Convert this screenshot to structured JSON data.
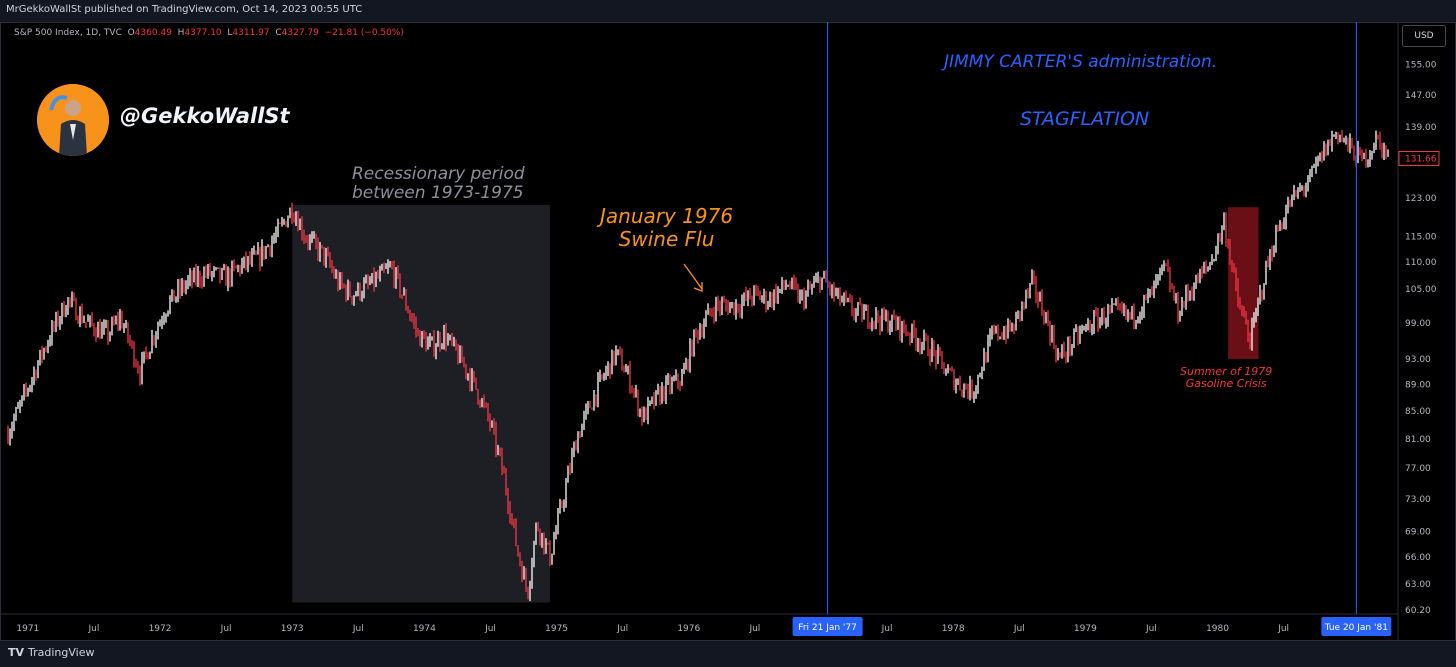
{
  "header": {
    "published": "MrGekkoWallSt published on TradingView.com, Oct 14, 2023 00:55 UTC",
    "symbol": "S&P 500 Index, 1D, TVC",
    "o_label": "O",
    "o_value": "4360.49",
    "h_label": "H",
    "h_value": "4377.10",
    "l_label": "L",
    "l_value": "4311.97",
    "c_label": "C",
    "c_value": "4327.79",
    "change": "−21.81 (−0.50%)",
    "currency": "USD"
  },
  "branding": {
    "handle": "@GekkoWallSt",
    "footer_logo": "TradingView"
  },
  "annotations": {
    "recession_line1": "Recessionary period",
    "recession_line2": "between 1973-1975",
    "swine_line1": "January 1976",
    "swine_line2": "Swine Flu",
    "carter": "JIMMY CARTER'S administration.",
    "stagflation": "STAGFLATION",
    "gas_line1": "Summer of 1979",
    "gas_line2": "Gasoline Crisis"
  },
  "colors": {
    "up": "#ffffff",
    "down": "#f23645",
    "marker": "#2962ff",
    "shade": "#1e1f24",
    "gas_shade": "#6b0f16"
  },
  "chart_data": {
    "type": "line",
    "title": "S&P 500 Index, 1D, TVC",
    "xlabel": "",
    "ylabel": "",
    "ylim": [
      60,
      160
    ],
    "xlim": [
      1970.85,
      1981.35
    ],
    "yticks": [
      155,
      147,
      139,
      131.66,
      123,
      115,
      110,
      105,
      99,
      93,
      89,
      85,
      81,
      77,
      73,
      69,
      66,
      63,
      60.2
    ],
    "ytick_labels": [
      "155.00",
      "147.00",
      "139.00",
      "131.66",
      "123.00",
      "115.00",
      "110.00",
      "105.00",
      "99.00",
      "93.00",
      "89.00",
      "85.00",
      "81.00",
      "77.00",
      "73.00",
      "69.00",
      "66.00",
      "63.00",
      "60.20"
    ],
    "xticks": [
      {
        "label": "1971",
        "t": 1971.0
      },
      {
        "label": "Jul",
        "t": 1971.5
      },
      {
        "label": "1972",
        "t": 1972.0
      },
      {
        "label": "Jul",
        "t": 1972.5
      },
      {
        "label": "1973",
        "t": 1973.0
      },
      {
        "label": "Jul",
        "t": 1973.5
      },
      {
        "label": "1974",
        "t": 1974.0
      },
      {
        "label": "Jul",
        "t": 1974.5
      },
      {
        "label": "1975",
        "t": 1975.0
      },
      {
        "label": "Jul",
        "t": 1975.5
      },
      {
        "label": "1976",
        "t": 1976.0
      },
      {
        "label": "Jul",
        "t": 1976.5
      },
      {
        "label": "Jul",
        "t": 1977.5
      },
      {
        "label": "1978",
        "t": 1978.0
      },
      {
        "label": "Jul",
        "t": 1978.5
      },
      {
        "label": "1979",
        "t": 1979.0
      },
      {
        "label": "Jul",
        "t": 1979.5
      },
      {
        "label": "1980",
        "t": 1980.0
      },
      {
        "label": "Jul",
        "t": 1980.5
      }
    ],
    "markers": [
      {
        "label": "Fri 21 Jan '77",
        "t": 1977.05
      },
      {
        "label": "Tue 20 Jan '81",
        "t": 1981.05
      }
    ],
    "last_price": 131.66,
    "price_series": [
      {
        "t": 1970.85,
        "v": 82
      },
      {
        "t": 1970.95,
        "v": 86
      },
      {
        "t": 1971.05,
        "v": 91
      },
      {
        "t": 1971.15,
        "v": 96
      },
      {
        "t": 1971.3,
        "v": 103
      },
      {
        "t": 1971.45,
        "v": 99
      },
      {
        "t": 1971.6,
        "v": 97
      },
      {
        "t": 1971.7,
        "v": 100
      },
      {
        "t": 1971.85,
        "v": 91
      },
      {
        "t": 1971.95,
        "v": 97
      },
      {
        "t": 1972.05,
        "v": 102
      },
      {
        "t": 1972.2,
        "v": 106
      },
      {
        "t": 1972.35,
        "v": 108
      },
      {
        "t": 1972.5,
        "v": 107
      },
      {
        "t": 1972.6,
        "v": 109
      },
      {
        "t": 1972.75,
        "v": 111
      },
      {
        "t": 1972.9,
        "v": 116
      },
      {
        "t": 1973.0,
        "v": 121
      },
      {
        "t": 1973.1,
        "v": 115
      },
      {
        "t": 1973.25,
        "v": 111
      },
      {
        "t": 1973.35,
        "v": 106
      },
      {
        "t": 1973.45,
        "v": 104
      },
      {
        "t": 1973.6,
        "v": 106
      },
      {
        "t": 1973.75,
        "v": 109
      },
      {
        "t": 1973.85,
        "v": 103
      },
      {
        "t": 1973.95,
        "v": 97
      },
      {
        "t": 1974.05,
        "v": 95
      },
      {
        "t": 1974.15,
        "v": 97
      },
      {
        "t": 1974.3,
        "v": 92
      },
      {
        "t": 1974.4,
        "v": 88
      },
      {
        "t": 1974.5,
        "v": 83
      },
      {
        "t": 1974.6,
        "v": 76
      },
      {
        "t": 1974.7,
        "v": 67
      },
      {
        "t": 1974.78,
        "v": 62
      },
      {
        "t": 1974.85,
        "v": 70
      },
      {
        "t": 1974.95,
        "v": 66
      },
      {
        "t": 1975.05,
        "v": 73
      },
      {
        "t": 1975.15,
        "v": 81
      },
      {
        "t": 1975.3,
        "v": 88
      },
      {
        "t": 1975.45,
        "v": 94
      },
      {
        "t": 1975.55,
        "v": 90
      },
      {
        "t": 1975.65,
        "v": 84
      },
      {
        "t": 1975.8,
        "v": 88
      },
      {
        "t": 1975.95,
        "v": 90
      },
      {
        "t": 1976.05,
        "v": 97
      },
      {
        "t": 1976.2,
        "v": 102
      },
      {
        "t": 1976.35,
        "v": 102
      },
      {
        "t": 1976.5,
        "v": 104
      },
      {
        "t": 1976.6,
        "v": 103
      },
      {
        "t": 1976.75,
        "v": 106
      },
      {
        "t": 1976.85,
        "v": 103
      },
      {
        "t": 1977.0,
        "v": 107
      },
      {
        "t": 1977.1,
        "v": 104
      },
      {
        "t": 1977.25,
        "v": 101
      },
      {
        "t": 1977.4,
        "v": 100
      },
      {
        "t": 1977.55,
        "v": 99
      },
      {
        "t": 1977.7,
        "v": 97
      },
      {
        "t": 1977.85,
        "v": 94
      },
      {
        "t": 1977.95,
        "v": 91
      },
      {
        "t": 1978.05,
        "v": 89
      },
      {
        "t": 1978.15,
        "v": 88
      },
      {
        "t": 1978.3,
        "v": 97
      },
      {
        "t": 1978.45,
        "v": 98
      },
      {
        "t": 1978.6,
        "v": 106
      },
      {
        "t": 1978.7,
        "v": 100
      },
      {
        "t": 1978.8,
        "v": 93
      },
      {
        "t": 1978.95,
        "v": 97
      },
      {
        "t": 1979.05,
        "v": 99
      },
      {
        "t": 1979.2,
        "v": 101
      },
      {
        "t": 1979.35,
        "v": 100
      },
      {
        "t": 1979.5,
        "v": 104
      },
      {
        "t": 1979.6,
        "v": 109
      },
      {
        "t": 1979.7,
        "v": 101
      },
      {
        "t": 1979.8,
        "v": 105
      },
      {
        "t": 1979.95,
        "v": 110
      },
      {
        "t": 1980.05,
        "v": 118
      },
      {
        "t": 1980.15,
        "v": 103
      },
      {
        "t": 1980.25,
        "v": 96
      },
      {
        "t": 1980.35,
        "v": 107
      },
      {
        "t": 1980.45,
        "v": 116
      },
      {
        "t": 1980.55,
        "v": 122
      },
      {
        "t": 1980.7,
        "v": 127
      },
      {
        "t": 1980.8,
        "v": 133
      },
      {
        "t": 1980.9,
        "v": 138
      },
      {
        "t": 1981.0,
        "v": 134
      },
      {
        "t": 1981.1,
        "v": 131
      },
      {
        "t": 1981.2,
        "v": 136
      },
      {
        "t": 1981.3,
        "v": 132
      }
    ]
  }
}
